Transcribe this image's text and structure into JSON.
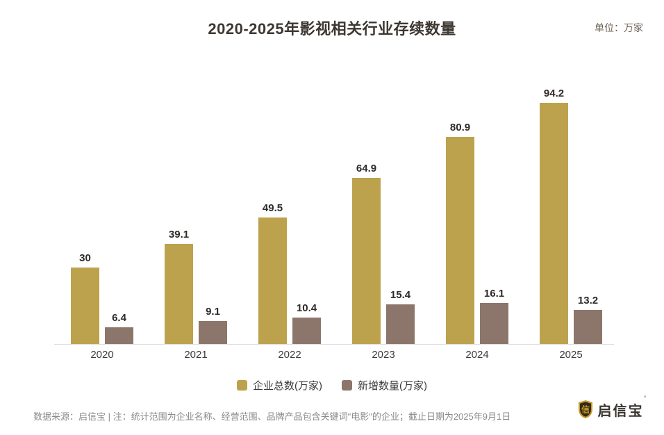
{
  "header": {
    "title": "2020-2025年影视相关行业存续数量",
    "unit_label": "单位：万家"
  },
  "chart_data": {
    "type": "bar",
    "categories": [
      "2020",
      "2021",
      "2022",
      "2023",
      "2024",
      "2025"
    ],
    "series": [
      {
        "name": "企业总数(万家)",
        "color": "#bda24d",
        "values": [
          30,
          39.1,
          49.5,
          64.9,
          80.9,
          94.2
        ]
      },
      {
        "name": "新增数量(万家)",
        "color": "#8c766b",
        "values": [
          6.4,
          9.1,
          10.4,
          15.4,
          16.1,
          13.2
        ]
      }
    ],
    "title": "2020-2025年影视相关行业存续数量",
    "unit": "万家",
    "xlabel": "",
    "ylabel": "",
    "ylim": [
      0,
      100
    ],
    "grid": false,
    "legend_position": "bottom",
    "value_labels": true
  },
  "footer": {
    "source_note": "数据来源：启信宝 | 注：统计范围为企业名称、经营范围、品牌产品包含关键词\"电影\"的企业；截止日期为2025年9月1日",
    "brand_name": "启信宝",
    "brand_mark": "信",
    "brand_tm": "’"
  },
  "colors": {
    "bar_primary": "#bda24d",
    "bar_secondary": "#8c766b",
    "axis_line": "#dcdcdc",
    "title_text": "#3e3731",
    "footer_text": "#8a8a8a",
    "brand_gold": "#c99a2e",
    "brand_dark": "#332a18"
  }
}
